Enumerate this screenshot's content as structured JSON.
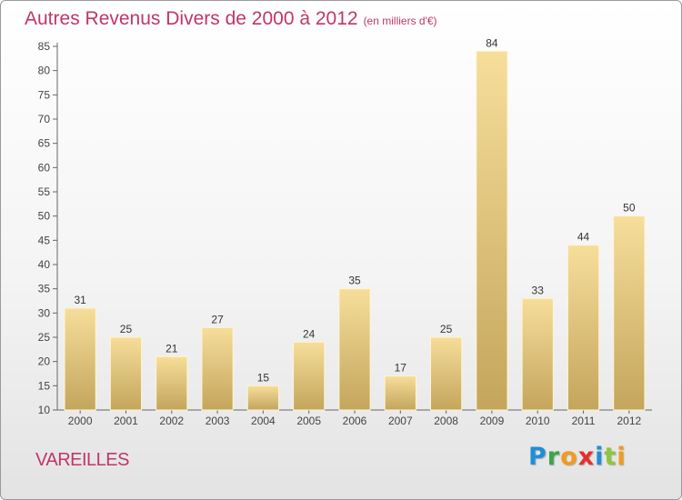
{
  "header": {
    "title": "Autres Revenus Divers de 2000 à 2012",
    "unit": "(en milliers d'€)"
  },
  "footer": {
    "commune": "VAREILLES",
    "logo": "Proxiti"
  },
  "colors": {
    "title": "#c0366a",
    "bar_light": "#f5dc96",
    "bar_dark": "#c8aa62",
    "axis": "#555555"
  },
  "chart_data": {
    "type": "bar",
    "title": "Autres Revenus Divers de 2000 à 2012",
    "subtitle": "(en milliers d'€)",
    "categories": [
      "2000",
      "2001",
      "2002",
      "2003",
      "2004",
      "2005",
      "2006",
      "2007",
      "2008",
      "2009",
      "2010",
      "2011",
      "2012"
    ],
    "values": [
      31,
      25,
      21,
      27,
      15,
      24,
      35,
      17,
      25,
      84,
      33,
      44,
      50
    ],
    "xlabel": "",
    "ylabel": "",
    "ylim": [
      10,
      85
    ],
    "yticks": [
      10,
      15,
      20,
      25,
      30,
      35,
      40,
      45,
      50,
      55,
      60,
      65,
      70,
      75,
      80,
      85
    ],
    "grid": false,
    "legend": "none"
  }
}
